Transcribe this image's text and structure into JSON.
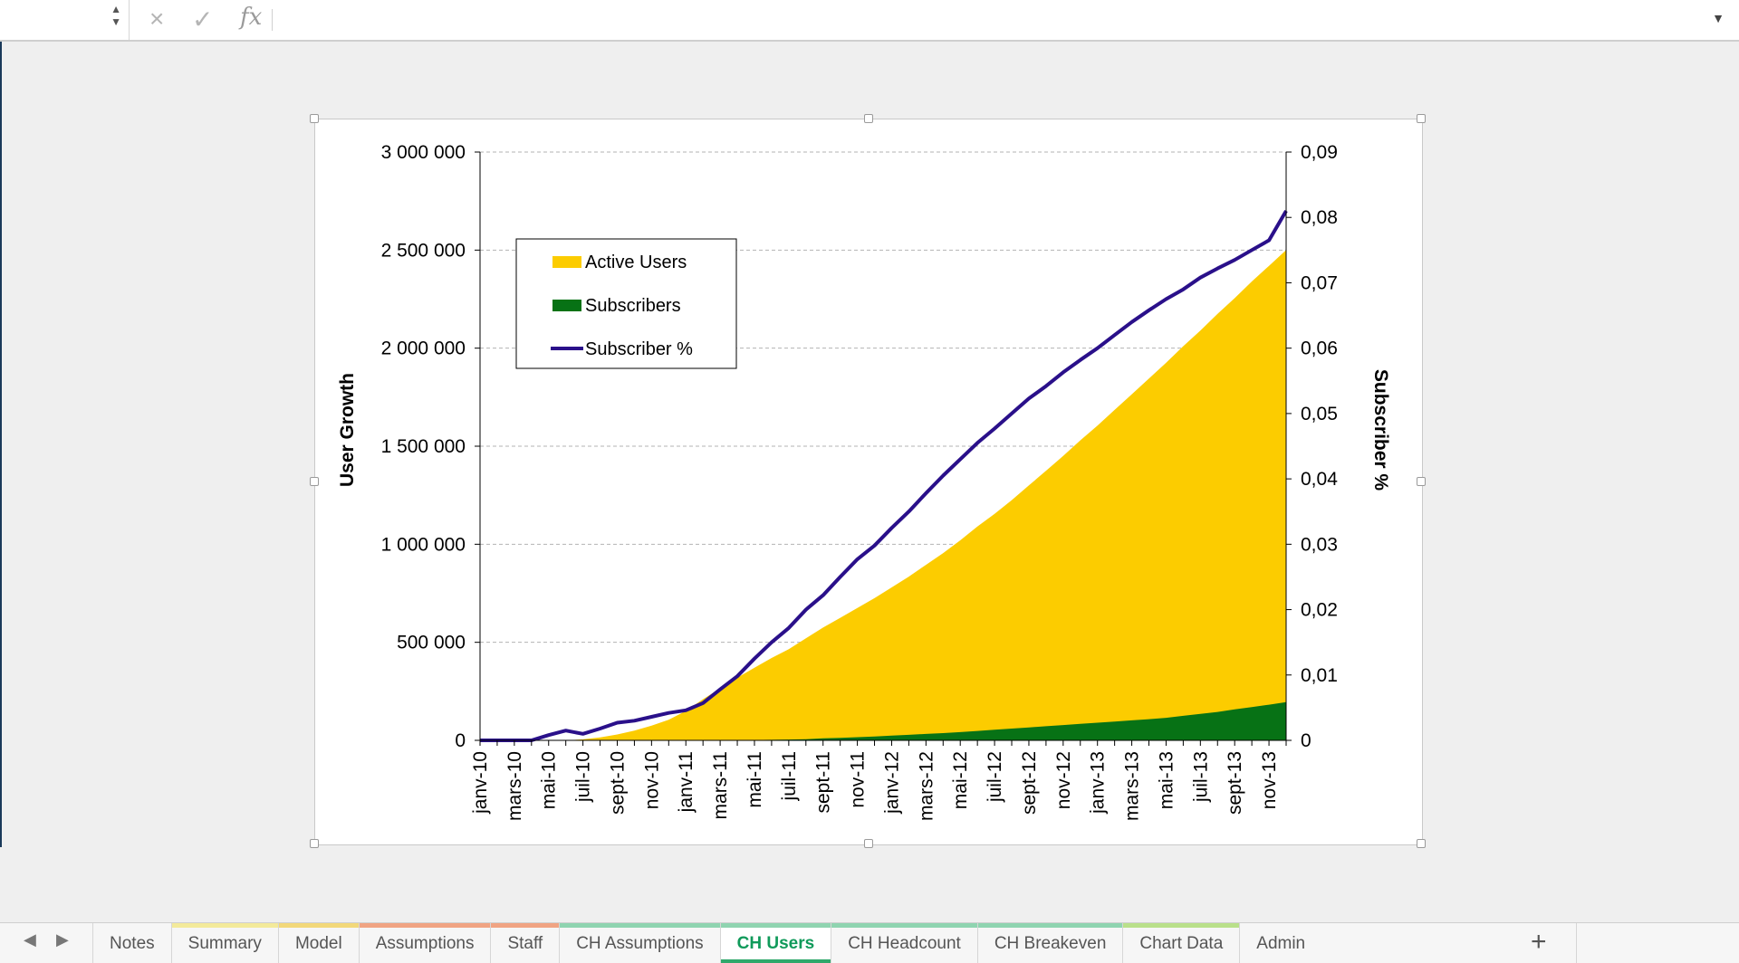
{
  "formula_bar": {
    "name_box_value": "",
    "cancel_icon": "×",
    "enter_icon": "✓",
    "fx_label": "fx",
    "formula_value": ""
  },
  "sheet_tabs": [
    {
      "label": "Notes",
      "color": ""
    },
    {
      "label": "Summary",
      "color": "#f3ea9a"
    },
    {
      "label": "Model",
      "color": "#f2d87a"
    },
    {
      "label": "Assumptions",
      "color": "#f0a483"
    },
    {
      "label": "Staff",
      "color": "#f0a483"
    },
    {
      "label": "CH Assumptions",
      "color": "#8fd4b0"
    },
    {
      "label": "CH Users",
      "color": "#8fd4b0",
      "active": true
    },
    {
      "label": "CH Headcount",
      "color": "#8fd4b0"
    },
    {
      "label": "CH Breakeven",
      "color": "#8fd4b0"
    },
    {
      "label": "Chart Data",
      "color": "#b9e08a"
    },
    {
      "label": "Admin",
      "color": ""
    }
  ],
  "add_sheet_label": "+",
  "colors": {
    "active_users": "#fccc00",
    "subscribers": "#077215",
    "subscriber_pct": "#2a108a",
    "active_tab": "#109a5a"
  },
  "chart_data": {
    "type": "area",
    "ylabel": "User Growth",
    "y2label": "Subscriber %",
    "ylim": [
      0,
      3000000
    ],
    "y2lim": [
      0,
      0.09
    ],
    "y_ticks": [
      "0",
      "500 000",
      "1 000 000",
      "1 500 000",
      "2 000 000",
      "2 500 000",
      "3 000 000"
    ],
    "y2_ticks": [
      "0",
      "0,01",
      "0,02",
      "0,03",
      "0,04",
      "0,05",
      "0,06",
      "0,07",
      "0,08",
      "0,09"
    ],
    "grid": true,
    "legend_position": "top-left",
    "x_tick_labels": [
      "janv-10",
      "mars-10",
      "mai-10",
      "juil-10",
      "sept-10",
      "nov-10",
      "janv-11",
      "mars-11",
      "mai-11",
      "juil-11",
      "sept-11",
      "nov-11",
      "janv-12",
      "mars-12",
      "mai-12",
      "juil-12",
      "sept-12",
      "nov-12",
      "janv-13",
      "mars-13",
      "mai-13",
      "juil-13",
      "sept-13",
      "nov-13"
    ],
    "x": [
      "janv-10",
      "févr-10",
      "mars-10",
      "avr-10",
      "mai-10",
      "juin-10",
      "juil-10",
      "août-10",
      "sept-10",
      "oct-10",
      "nov-10",
      "déc-10",
      "janv-11",
      "févr-11",
      "mars-11",
      "avr-11",
      "mai-11",
      "juin-11",
      "juil-11",
      "août-11",
      "sept-11",
      "oct-11",
      "nov-11",
      "déc-11",
      "janv-12",
      "févr-12",
      "mars-12",
      "avr-12",
      "mai-12",
      "juin-12",
      "juil-12",
      "août-12",
      "sept-12",
      "oct-12",
      "nov-12",
      "déc-12",
      "janv-13",
      "févr-13",
      "mars-13",
      "avr-13",
      "mai-13",
      "juin-13",
      "juil-13",
      "août-13",
      "sept-13",
      "oct-13",
      "nov-13",
      "déc-13"
    ],
    "series": [
      {
        "name": "Active Users",
        "axis": "left",
        "values": [
          0,
          0,
          0,
          0,
          0,
          0,
          5000,
          15000,
          30000,
          50000,
          75000,
          105000,
          150000,
          210000,
          265000,
          320000,
          370000,
          420000,
          465000,
          520000,
          575000,
          625000,
          675000,
          725000,
          780000,
          835000,
          895000,
          955000,
          1020000,
          1090000,
          1155000,
          1225000,
          1300000,
          1375000,
          1450000,
          1530000,
          1605000,
          1685000,
          1765000,
          1845000,
          1925000,
          2010000,
          2090000,
          2175000,
          2255000,
          2340000,
          2420000,
          2500000
        ]
      },
      {
        "name": "Subscribers",
        "axis": "left",
        "values": [
          0,
          0,
          0,
          0,
          0,
          0,
          0,
          0,
          0,
          0,
          0,
          0,
          0,
          0,
          0,
          0,
          2000,
          3000,
          4000,
          6000,
          10000,
          13000,
          16000,
          20000,
          24000,
          28000,
          33000,
          37000,
          42000,
          48000,
          54000,
          60000,
          66000,
          72000,
          78000,
          84000,
          90000,
          96000,
          102000,
          108000,
          115000,
          125000,
          135000,
          145000,
          158000,
          170000,
          182000,
          195000
        ]
      },
      {
        "name": "Subscriber %",
        "axis": "right",
        "values": [
          0,
          0,
          0,
          0,
          0.0008,
          0.0015,
          0.001,
          0.0018,
          0.0027,
          0.003,
          0.0036,
          0.0042,
          0.0046,
          0.0057,
          0.0078,
          0.0098,
          0.0125,
          0.015,
          0.0172,
          0.02,
          0.0222,
          0.025,
          0.0277,
          0.0298,
          0.0325,
          0.035,
          0.0378,
          0.0405,
          0.043,
          0.0455,
          0.0477,
          0.05,
          0.0523,
          0.0542,
          0.0563,
          0.0582,
          0.06,
          0.062,
          0.064,
          0.0658,
          0.0675,
          0.069,
          0.0708,
          0.0722,
          0.0735,
          0.075,
          0.0765,
          0.081
        ]
      }
    ]
  }
}
